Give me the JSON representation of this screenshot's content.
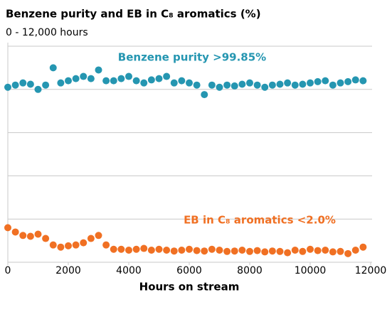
{
  "chart_data": {
    "type": "scatter",
    "title": "Benzene purity and EB in C₈ aromatics (%)",
    "subtitle": "0 - 12,000 hours",
    "x_label": "Hours on stream",
    "annotations": [
      "Benzene purity >99.85%",
      "EB in C₈ aromatics <2.0%"
    ],
    "xlim": [
      0,
      12000
    ],
    "xticks": [
      0,
      2000,
      4000,
      6000,
      8000,
      10000,
      12000
    ],
    "ylim": [
      0,
      5
    ],
    "yticks": [
      1,
      2,
      3,
      4,
      5
    ],
    "grid": true,
    "x": [
      0,
      250,
      500,
      750,
      1000,
      1250,
      1500,
      1750,
      2000,
      2250,
      2500,
      2750,
      3000,
      3250,
      3500,
      3750,
      4000,
      4250,
      4500,
      4750,
      5000,
      5250,
      5500,
      5750,
      6000,
      6250,
      6500,
      6750,
      7000,
      7250,
      7500,
      7750,
      8000,
      8250,
      8500,
      8750,
      9000,
      9250,
      9500,
      9750,
      10000,
      10250,
      10500,
      10750,
      11000,
      11250,
      11500,
      11750
    ],
    "series": [
      {
        "name": "Benzene purity",
        "color": "#2596b1",
        "values": [
          4.05,
          4.1,
          4.15,
          4.12,
          4.0,
          4.1,
          4.5,
          4.15,
          4.2,
          4.25,
          4.3,
          4.25,
          4.45,
          4.2,
          4.2,
          4.25,
          4.3,
          4.2,
          4.15,
          4.22,
          4.25,
          4.3,
          4.15,
          4.2,
          4.15,
          4.1,
          3.88,
          4.1,
          4.05,
          4.1,
          4.08,
          4.12,
          4.15,
          4.1,
          4.05,
          4.1,
          4.12,
          4.15,
          4.1,
          4.12,
          4.15,
          4.18,
          4.2,
          4.1,
          4.15,
          4.18,
          4.22,
          4.2
        ]
      },
      {
        "name": "EB in C8 aromatics",
        "color": "#f07023",
        "values": [
          0.8,
          0.7,
          0.62,
          0.6,
          0.65,
          0.55,
          0.4,
          0.35,
          0.38,
          0.4,
          0.45,
          0.55,
          0.62,
          0.4,
          0.3,
          0.3,
          0.28,
          0.3,
          0.32,
          0.28,
          0.3,
          0.28,
          0.26,
          0.28,
          0.3,
          0.27,
          0.26,
          0.3,
          0.28,
          0.25,
          0.26,
          0.28,
          0.25,
          0.27,
          0.24,
          0.26,
          0.25,
          0.22,
          0.28,
          0.25,
          0.3,
          0.27,
          0.28,
          0.24,
          0.25,
          0.2,
          0.28,
          0.35
        ]
      }
    ]
  }
}
